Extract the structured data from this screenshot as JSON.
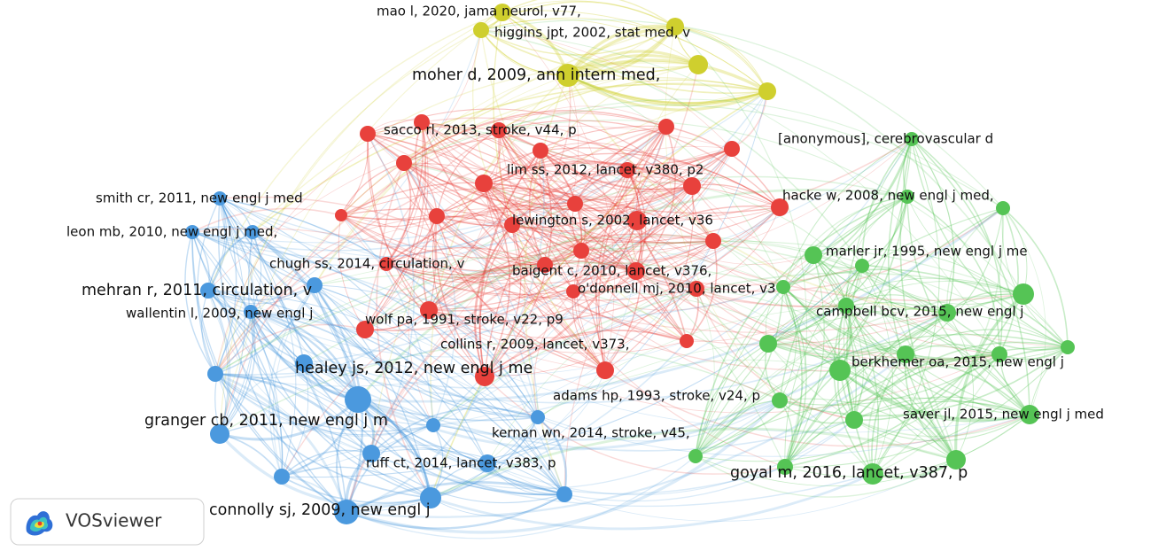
{
  "network": {
    "nodes": [
      {
        "label": "mao l, 2020, jama neurol, v77,"
      },
      {
        "label": "higgins jpt, 2002, stat med, v"
      },
      {
        "label": "moher d, 2009, ann intern med,"
      },
      {
        "label": "sacco rl, 2013, stroke, v44, p"
      },
      {
        "label": "lim ss, 2012, lancet, v380, p2"
      },
      {
        "label": "lewington s, 2002, lancet, v36"
      },
      {
        "label": "baigent c, 2010, lancet, v376,"
      },
      {
        "label": "o'donnell mj, 2010, lancet, v3"
      },
      {
        "label": "wolf pa, 1991, stroke, v22, p9"
      },
      {
        "label": "collins r, 2009, lancet, v373,"
      },
      {
        "label": "chugh ss, 2014, circulation, v"
      },
      {
        "label": "[anonymous], cerebrovascular d"
      },
      {
        "label": "hacke w, 2008, new engl j med,"
      },
      {
        "label": "marler jr, 1995, new engl j me"
      },
      {
        "label": "campbell bcv, 2015, new engl j"
      },
      {
        "label": "berkhemer oa, 2015, new engl j"
      },
      {
        "label": "adams hp, 1993, stroke, v24, p"
      },
      {
        "label": "saver jl, 2015, new engl j med"
      },
      {
        "label": "goyal m, 2016, lancet, v387, p"
      },
      {
        "label": "smith cr, 2011, new engl j med"
      },
      {
        "label": "leon mb, 2010, new engl j med,"
      },
      {
        "label": "mehran r, 2011, circulation, v"
      },
      {
        "label": "wallentin l, 2009, new engl j"
      },
      {
        "label": "healey js, 2012, new engl j me"
      },
      {
        "label": "granger cb, 2011, new engl j m"
      },
      {
        "label": "kernan wn, 2014, stroke, v45,"
      },
      {
        "label": "ruff ct, 2014, lancet, v383, p"
      },
      {
        "label": "connolly sj, 2009, new engl j"
      }
    ]
  },
  "logo": {
    "text": "VOSviewer"
  }
}
